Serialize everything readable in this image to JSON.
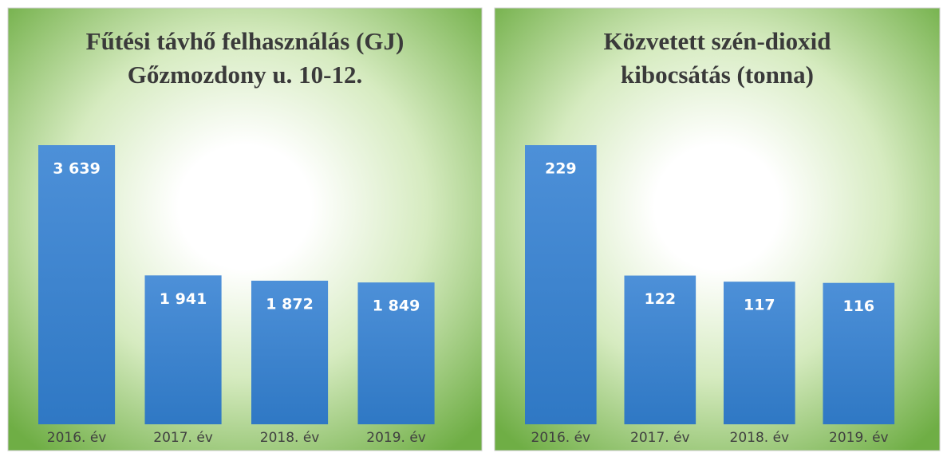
{
  "chart_data": [
    {
      "type": "bar",
      "title": [
        "Fűtési távhő felhasználás (GJ)",
        "Gőzmozdony u. 10-12."
      ],
      "categories": [
        "2016. év",
        "2017. év",
        "2018. év",
        "2019. év"
      ],
      "values": [
        3639,
        1941,
        1872,
        1849
      ],
      "value_labels": [
        "3 639",
        "1 941",
        "1 872",
        "1 849"
      ],
      "color": "#3b82cf"
    },
    {
      "type": "bar",
      "title": [
        "Közvetett szén-dioxid",
        "kibocsátás (tonna)"
      ],
      "categories": [
        "2016. év",
        "2017. év",
        "2018. év",
        "2019. év"
      ],
      "values": [
        229,
        122,
        117,
        116
      ],
      "color": "#3b82cf"
    }
  ]
}
